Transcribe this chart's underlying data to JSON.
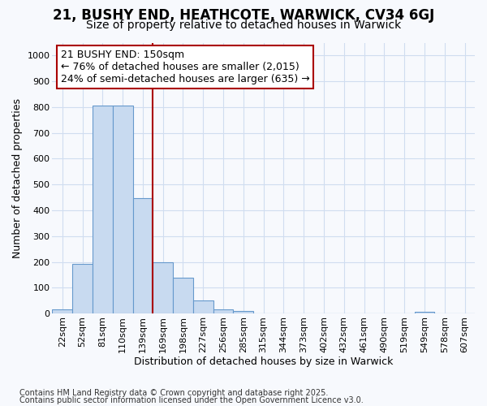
{
  "title_line1": "21, BUSHY END, HEATHCOTE, WARWICK, CV34 6GJ",
  "title_line2": "Size of property relative to detached houses in Warwick",
  "xlabel": "Distribution of detached houses by size in Warwick",
  "ylabel": "Number of detached properties",
  "categories": [
    "22sqm",
    "52sqm",
    "81sqm",
    "110sqm",
    "139sqm",
    "169sqm",
    "198sqm",
    "227sqm",
    "256sqm",
    "285sqm",
    "315sqm",
    "344sqm",
    "373sqm",
    "402sqm",
    "432sqm",
    "461sqm",
    "490sqm",
    "519sqm",
    "549sqm",
    "578sqm",
    "607sqm"
  ],
  "values": [
    15,
    193,
    805,
    805,
    447,
    197,
    140,
    50,
    15,
    10,
    0,
    0,
    0,
    0,
    0,
    0,
    0,
    0,
    5,
    0,
    0
  ],
  "bar_color": "#c8daf0",
  "bar_edge_color": "#6699cc",
  "vline_color": "#aa0000",
  "vline_pos": 4.5,
  "annotation_title": "21 BUSHY END: 150sqm",
  "annotation_line1": "← 76% of detached houses are smaller (2,015)",
  "annotation_line2": "24% of semi-detached houses are larger (635) →",
  "ylim_max": 1050,
  "yticks": [
    0,
    100,
    200,
    300,
    400,
    500,
    600,
    700,
    800,
    900,
    1000
  ],
  "footer_line1": "Contains HM Land Registry data © Crown copyright and database right 2025.",
  "footer_line2": "Contains public sector information licensed under the Open Government Licence v3.0.",
  "bg_color": "#f7f9fd",
  "grid_color": "#d0ddf0",
  "title_fontsize": 12,
  "subtitle_fontsize": 10,
  "axis_label_fontsize": 9,
  "tick_fontsize": 8,
  "footer_fontsize": 7,
  "ann_fontsize": 9
}
